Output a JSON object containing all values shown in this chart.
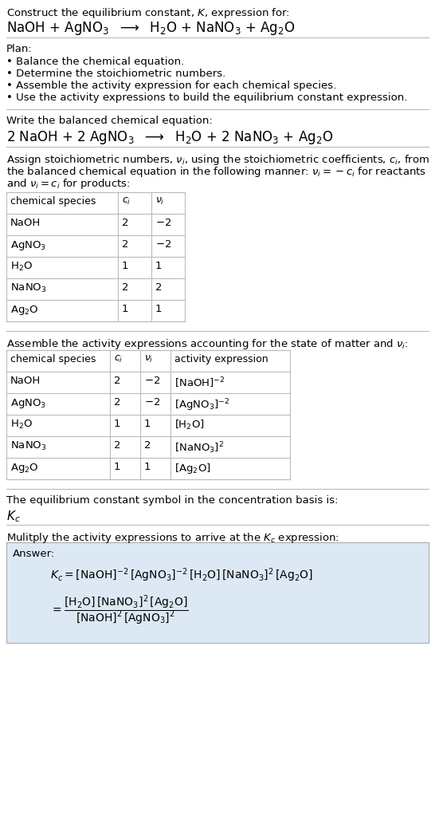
{
  "bg_color": "#ffffff",
  "text_color": "#000000",
  "section1_title": "Construct the equilibrium constant, $K$, expression for:",
  "section1_eq": "NaOH + AgNO$_3$  $\\longrightarrow$  H$_2$O + NaNO$_3$ + Ag$_2$O",
  "section2_title": "Plan:",
  "section2_bullets": [
    "• Balance the chemical equation.",
    "• Determine the stoichiometric numbers.",
    "• Assemble the activity expression for each chemical species.",
    "• Use the activity expressions to build the equilibrium constant expression."
  ],
  "section3_title": "Write the balanced chemical equation:",
  "section3_eq": "2 NaOH + 2 AgNO$_3$  $\\longrightarrow$  H$_2$O + 2 NaNO$_3$ + Ag$_2$O",
  "section4_title": "Assign stoichiometric numbers, $\\nu_i$, using the stoichiometric coefficients, $c_i$, from\nthe balanced chemical equation in the following manner: $\\nu_i = -c_i$ for reactants\nand $\\nu_i = c_i$ for products:",
  "table1_headers": [
    "chemical species",
    "$c_i$",
    "$\\nu_i$"
  ],
  "table1_rows": [
    [
      "NaOH",
      "2",
      "$-2$"
    ],
    [
      "AgNO$_3$",
      "2",
      "$-2$"
    ],
    [
      "H$_2$O",
      "1",
      "1"
    ],
    [
      "NaNO$_3$",
      "2",
      "2"
    ],
    [
      "Ag$_2$O",
      "1",
      "1"
    ]
  ],
  "section5_title": "Assemble the activity expressions accounting for the state of matter and $\\nu_i$:",
  "table2_headers": [
    "chemical species",
    "$c_i$",
    "$\\nu_i$",
    "activity expression"
  ],
  "table2_rows": [
    [
      "NaOH",
      "2",
      "$-2$",
      "[NaOH]$^{-2}$"
    ],
    [
      "AgNO$_3$",
      "2",
      "$-2$",
      "[AgNO$_3$]$^{-2}$"
    ],
    [
      "H$_2$O",
      "1",
      "1",
      "[H$_2$O]"
    ],
    [
      "NaNO$_3$",
      "2",
      "2",
      "[NaNO$_3$]$^2$"
    ],
    [
      "Ag$_2$O",
      "1",
      "1",
      "[Ag$_2$O]"
    ]
  ],
  "section6_title": "The equilibrium constant symbol in the concentration basis is:",
  "section6_symbol": "$K_c$",
  "section7_title": "Mulitply the activity expressions to arrive at the $K_c$ expression:",
  "answer_bg": "#dce9f5",
  "answer_label": "Answer:",
  "answer_line1": "$K_c = [\\mathrm{NaOH}]^{-2}\\,[\\mathrm{AgNO_3}]^{-2}\\,[\\mathrm{H_2O}]\\,[\\mathrm{NaNO_3}]^2\\,[\\mathrm{Ag_2O}]$",
  "answer_line2": "$= \\dfrac{[\\mathrm{H_2O}]\\,[\\mathrm{NaNO_3}]^2\\,[\\mathrm{Ag_2O}]}{[\\mathrm{NaOH}]^2\\,[\\mathrm{AgNO_3}]^2}$"
}
